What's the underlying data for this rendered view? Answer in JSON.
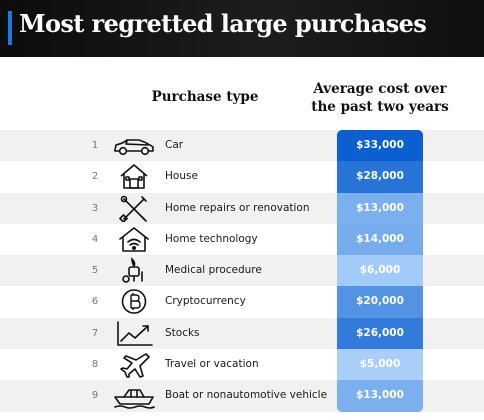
{
  "header": {
    "title": "Most regretted large purchases"
  },
  "columns": {
    "purchase": "Purchase type",
    "cost": "Average cost over the past two years"
  },
  "chart_data": {
    "type": "table",
    "title": "Most regretted large purchases",
    "columns": [
      "Purchase type",
      "Average cost over the past two years"
    ],
    "categories": [
      "Car",
      "House",
      "Home repairs or renovation",
      "Home technology",
      "Medical procedure",
      "Cryptocurrency",
      "Stocks",
      "Travel or vacation",
      "Boat or nonautomotive vehicle"
    ],
    "values": [
      33000,
      28000,
      13000,
      14000,
      6000,
      20000,
      26000,
      5000,
      13000
    ],
    "rows": [
      {
        "rank": "1",
        "icon": "car-icon",
        "label": "Car",
        "cost": "$33,000",
        "value": 33000
      },
      {
        "rank": "2",
        "icon": "house-icon",
        "label": "House",
        "cost": "$28,000",
        "value": 28000
      },
      {
        "rank": "3",
        "icon": "tools-icon",
        "label": "Home repairs or renovation",
        "cost": "$13,000",
        "value": 13000
      },
      {
        "rank": "4",
        "icon": "smart-home-icon",
        "label": "Home technology",
        "cost": "$14,000",
        "value": 14000
      },
      {
        "rank": "5",
        "icon": "medical-icon",
        "label": "Medical procedure",
        "cost": "$6,000",
        "value": 6000
      },
      {
        "rank": "6",
        "icon": "bitcoin-icon",
        "label": "Cryptocurrency",
        "cost": "$20,000",
        "value": 20000
      },
      {
        "rank": "7",
        "icon": "stocks-chart-icon",
        "label": "Stocks",
        "cost": "$26,000",
        "value": 26000
      },
      {
        "rank": "8",
        "icon": "airplane-icon",
        "label": "Travel or vacation",
        "cost": "$5,000",
        "value": 5000
      },
      {
        "rank": "9",
        "icon": "boat-icon",
        "label": "Boat or nonautomotive vehicle",
        "cost": "$13,000",
        "value": 13000
      }
    ],
    "color_scale": {
      "low": "#a9cff9",
      "high": "#0b5fd1"
    }
  }
}
